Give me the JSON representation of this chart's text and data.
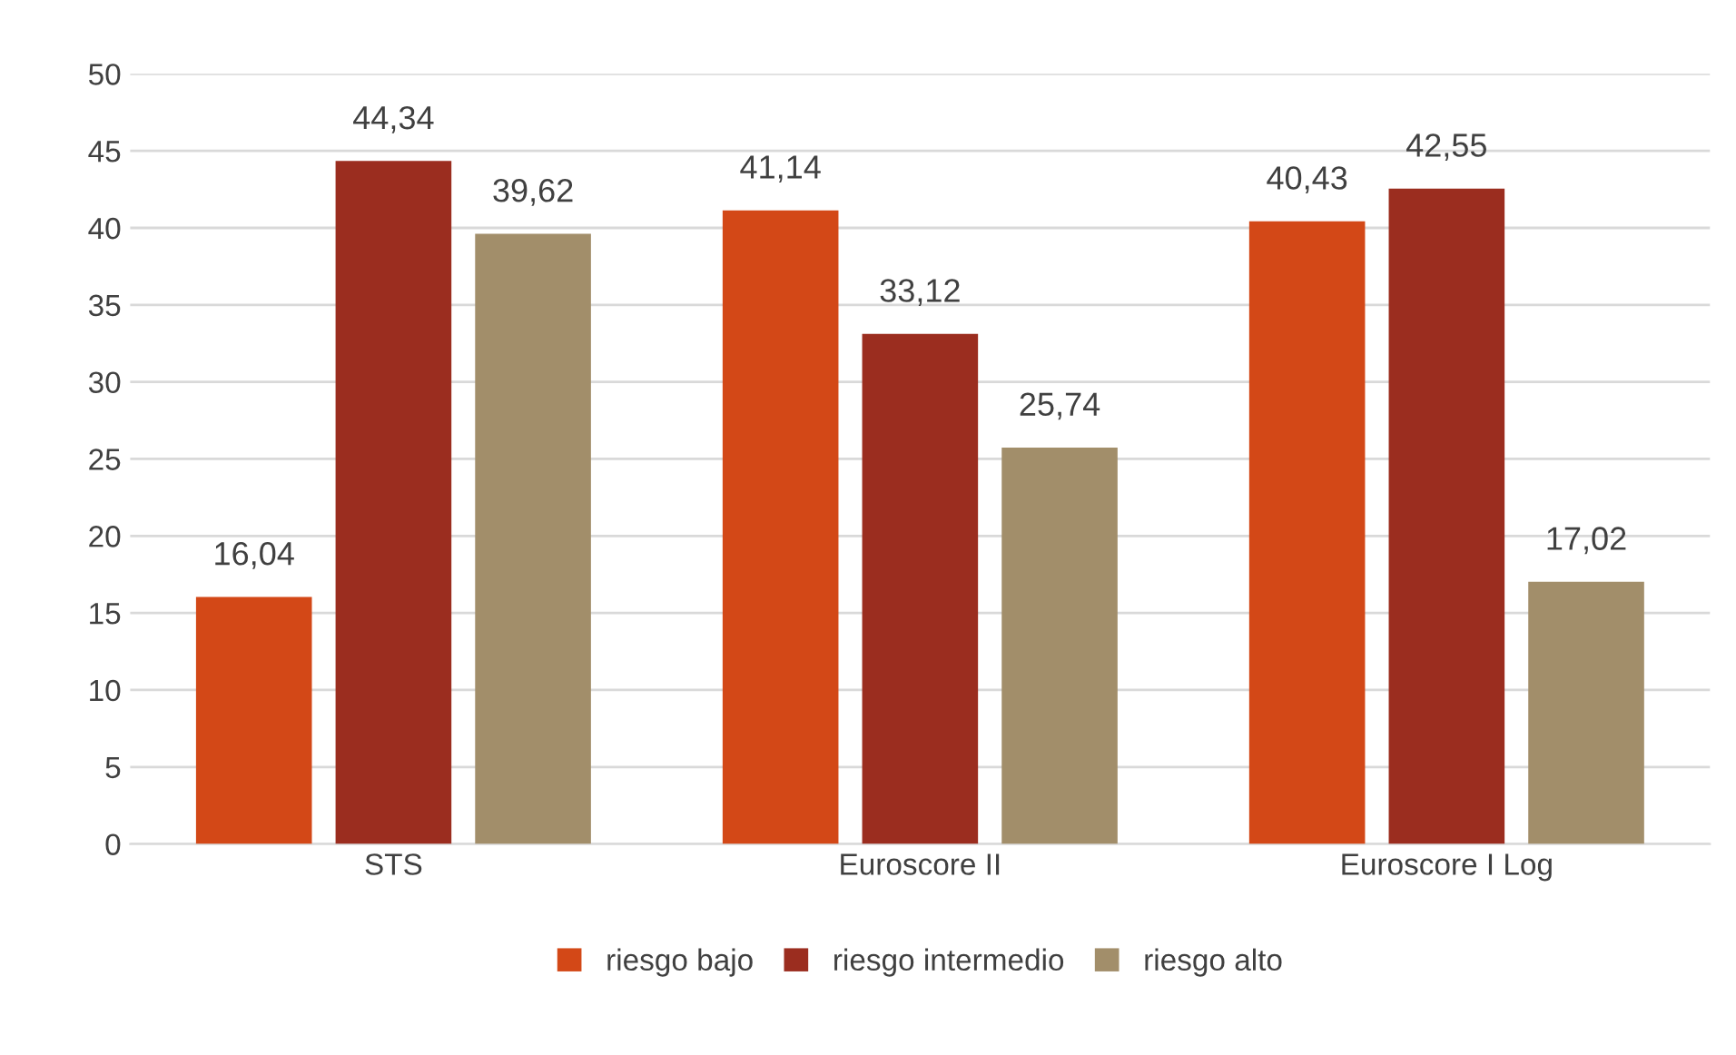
{
  "chart_data": {
    "type": "bar",
    "categories": [
      "STS",
      "Euroscore II",
      "Euroscore I Log"
    ],
    "series": [
      {
        "name": "riesgo bajo",
        "color": "#d34817",
        "values": [
          16.04,
          41.14,
          40.43
        ],
        "value_labels": [
          "16,04",
          "41,14",
          "40,43"
        ]
      },
      {
        "name": "riesgo intermedio",
        "color": "#9b2d1f",
        "values": [
          44.34,
          33.12,
          42.55
        ],
        "value_labels": [
          "44,34",
          "33,12",
          "42,55"
        ]
      },
      {
        "name": "riesgo alto",
        "color": "#a28e6a",
        "values": [
          39.62,
          25.74,
          17.02
        ],
        "value_labels": [
          "39,62",
          "25,74",
          "17,02"
        ]
      }
    ],
    "ylim": [
      0,
      50
    ],
    "yticks": [
      0,
      5,
      10,
      15,
      20,
      25,
      30,
      35,
      40,
      45,
      50
    ],
    "grid": "y",
    "legend": "bottom"
  }
}
